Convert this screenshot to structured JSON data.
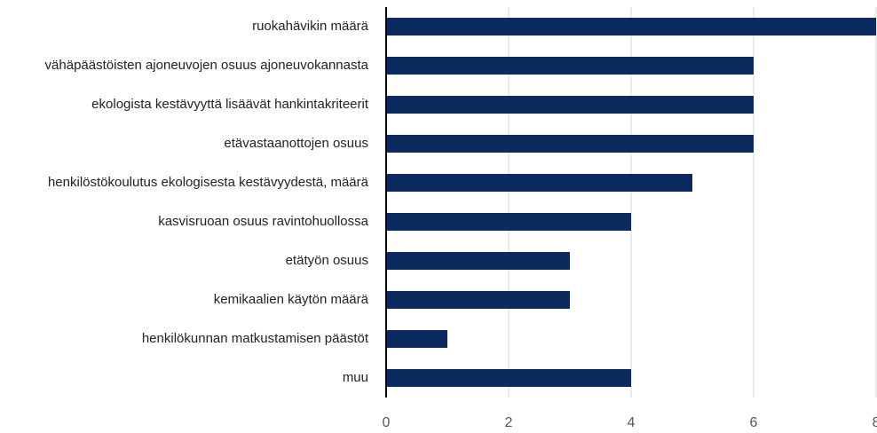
{
  "chart_data": {
    "type": "hbar",
    "categories": [
      "ruokahävikin määrä",
      "vähäpäästöisten ajoneuvojen osuus ajoneuvokannasta",
      "ekologista kestävyyttä lisäävät hankintakriteerit",
      "etävastaanottojen osuus",
      "henkilöstökoulutus ekologisesta kestävyydestä, määrä",
      "kasvisruoan osuus ravintohuollossa",
      "etätyön osuus",
      "kemikaalien käytön määrä",
      "henkilökunnan matkustamisen päästöt",
      "muu"
    ],
    "values": [
      8,
      6,
      6,
      6,
      5,
      4,
      3,
      3,
      1,
      4
    ],
    "color": "#0b2a5e",
    "xlim": [
      0,
      8
    ],
    "xticks": [
      0,
      2,
      4,
      6,
      8
    ],
    "grid": true
  }
}
